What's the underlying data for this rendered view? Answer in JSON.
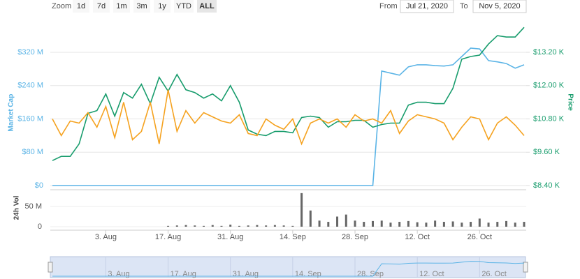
{
  "controls": {
    "zoom_label": "Zoom",
    "buttons": [
      "1d",
      "7d",
      "1m",
      "3m",
      "1y",
      "YTD",
      "ALL"
    ],
    "selected": "ALL",
    "from_label": "From",
    "from": "Jul 21, 2020",
    "to_label": "To",
    "to": "Nov 5, 2020"
  },
  "chart_data": [
    {
      "type": "line",
      "y_label": "Market Cap",
      "y2_label": "Price",
      "x": [
        "2020-07-22",
        "2020-07-24",
        "2020-07-26",
        "2020-07-28",
        "2020-07-30",
        "2020-08-01",
        "2020-08-03",
        "2020-08-05",
        "2020-08-07",
        "2020-08-09",
        "2020-08-11",
        "2020-08-13",
        "2020-08-15",
        "2020-08-17",
        "2020-08-19",
        "2020-08-21",
        "2020-08-23",
        "2020-08-25",
        "2020-08-27",
        "2020-08-29",
        "2020-08-31",
        "2020-09-02",
        "2020-09-04",
        "2020-09-06",
        "2020-09-08",
        "2020-09-10",
        "2020-09-12",
        "2020-09-14",
        "2020-09-16",
        "2020-09-18",
        "2020-09-20",
        "2020-09-22",
        "2020-09-24",
        "2020-09-26",
        "2020-09-28",
        "2020-09-30",
        "2020-10-02",
        "2020-10-04",
        "2020-10-06",
        "2020-10-08",
        "2020-10-10",
        "2020-10-12",
        "2020-10-14",
        "2020-10-16",
        "2020-10-18",
        "2020-10-20",
        "2020-10-22",
        "2020-10-24",
        "2020-10-26",
        "2020-10-28",
        "2020-10-30",
        "2020-11-01",
        "2020-11-03",
        "2020-11-05"
      ],
      "xlim": [
        "2020-07-22",
        "2020-11-05"
      ],
      "series": [
        {
          "name": "Market Cap",
          "color": "#5bb4e6",
          "axis": "y",
          "values": [
            0,
            0,
            0,
            0,
            0,
            0,
            0,
            0,
            0,
            0,
            0,
            0,
            0,
            0,
            0,
            0,
            0,
            0,
            0,
            0,
            0,
            0,
            0,
            0,
            0,
            0,
            0,
            0,
            0,
            0,
            0,
            0,
            0,
            0,
            0,
            0,
            0,
            275,
            270,
            265,
            285,
            290,
            290,
            288,
            287,
            290,
            310,
            330,
            328,
            300,
            297,
            293,
            282,
            290
          ]
        },
        {
          "name": "Price",
          "color": "#179c6c",
          "axis": "y2",
          "values": [
            9.3,
            9.45,
            9.45,
            9.9,
            11.0,
            11.1,
            11.7,
            10.9,
            11.75,
            11.55,
            12.05,
            11.35,
            12.3,
            11.8,
            12.4,
            11.85,
            11.75,
            11.55,
            11.7,
            11.45,
            12.0,
            11.4,
            10.4,
            10.25,
            10.2,
            10.35,
            10.35,
            10.3,
            10.85,
            10.9,
            10.85,
            10.5,
            10.7,
            10.7,
            10.75,
            10.75,
            10.5,
            10.6,
            10.65,
            10.65,
            11.3,
            11.4,
            11.4,
            11.35,
            11.35,
            11.9,
            12.95,
            13.05,
            13.1,
            13.5,
            13.8,
            13.75,
            13.75,
            14.1
          ]
        },
        {
          "color": "#f5a21f",
          "axis": "y",
          "values": [
            160,
            120,
            155,
            150,
            175,
            140,
            190,
            115,
            200,
            110,
            130,
            200,
            100,
            230,
            130,
            180,
            150,
            175,
            165,
            155,
            150,
            170,
            125,
            120,
            160,
            145,
            135,
            160,
            100,
            150,
            160,
            150,
            160,
            140,
            170,
            155,
            160,
            150,
            180,
            125,
            155,
            170,
            165,
            160,
            150,
            110,
            140,
            165,
            160,
            110,
            150,
            165,
            145,
            120
          ]
        }
      ],
      "ylim": [
        0,
        400
      ],
      "yticks": [
        {
          "value": 0,
          "label": "$0"
        },
        {
          "value": 80,
          "label": "$80 M"
        },
        {
          "value": 160,
          "label": "$160 M"
        },
        {
          "value": 240,
          "label": "$240 M"
        },
        {
          "value": 320,
          "label": "$320 M"
        }
      ],
      "y2lim": [
        8.4,
        14.4
      ],
      "y2ticks": [
        {
          "value": 8.4,
          "label": "$8.40 K"
        },
        {
          "value": 9.6,
          "label": "$9.60 K"
        },
        {
          "value": 10.8,
          "label": "$10.80 K"
        },
        {
          "value": 12.0,
          "label": "$12.00 K"
        },
        {
          "value": 13.2,
          "label": "$13.20 K"
        }
      ],
      "grid": true
    },
    {
      "type": "bar",
      "y_label": "24h Vol",
      "color": "#666666",
      "x": [
        "2020-07-22",
        "2020-07-24",
        "2020-07-26",
        "2020-07-28",
        "2020-07-30",
        "2020-08-01",
        "2020-08-03",
        "2020-08-05",
        "2020-08-07",
        "2020-08-09",
        "2020-08-11",
        "2020-08-13",
        "2020-08-15",
        "2020-08-17",
        "2020-08-19",
        "2020-08-21",
        "2020-08-23",
        "2020-08-25",
        "2020-08-27",
        "2020-08-29",
        "2020-08-31",
        "2020-09-02",
        "2020-09-04",
        "2020-09-06",
        "2020-09-08",
        "2020-09-10",
        "2020-09-12",
        "2020-09-14",
        "2020-09-16",
        "2020-09-18",
        "2020-09-20",
        "2020-09-22",
        "2020-09-24",
        "2020-09-26",
        "2020-09-28",
        "2020-09-30",
        "2020-10-02",
        "2020-10-04",
        "2020-10-06",
        "2020-10-08",
        "2020-10-10",
        "2020-10-12",
        "2020-10-14",
        "2020-10-16",
        "2020-10-18",
        "2020-10-20",
        "2020-10-22",
        "2020-10-24",
        "2020-10-26",
        "2020-10-28",
        "2020-10-30",
        "2020-11-01",
        "2020-11-03",
        "2020-11-05"
      ],
      "values": [
        0,
        0,
        0,
        0,
        0,
        0,
        0,
        0,
        0,
        0,
        0,
        0,
        0,
        2,
        3,
        4,
        3,
        2,
        4,
        2,
        5,
        2,
        3,
        4,
        3,
        4,
        3,
        2,
        83,
        40,
        15,
        12,
        25,
        30,
        15,
        12,
        14,
        15,
        10,
        12,
        14,
        11,
        10,
        15,
        12,
        13,
        10,
        12,
        20,
        10,
        12,
        14,
        10,
        12
      ],
      "xlim": [
        "2020-07-22",
        "2020-11-05"
      ],
      "xticks": [
        {
          "value": "2020-08-03",
          "label": "3. Aug"
        },
        {
          "value": "2020-08-17",
          "label": "17. Aug"
        },
        {
          "value": "2020-08-31",
          "label": "31. Aug"
        },
        {
          "value": "2020-09-14",
          "label": "14. Sep"
        },
        {
          "value": "2020-09-28",
          "label": "28. Sep"
        },
        {
          "value": "2020-10-12",
          "label": "12. Oct"
        },
        {
          "value": "2020-10-26",
          "label": "26. Oct"
        }
      ],
      "ylim": [
        0,
        90
      ],
      "yticks": [
        0,
        {
          "value": 50,
          "label": "50 M"
        }
      ]
    }
  ]
}
